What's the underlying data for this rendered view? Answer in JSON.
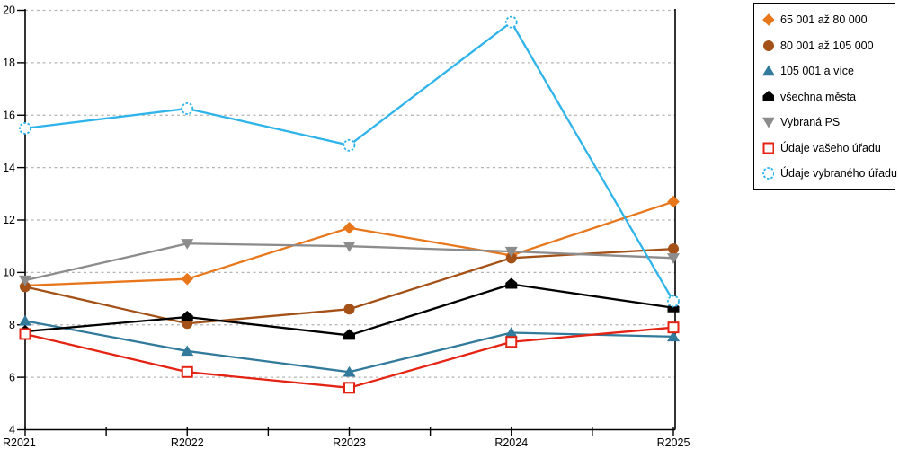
{
  "chart_data": {
    "type": "line",
    "title": "",
    "xlabel": "",
    "ylabel": "",
    "categories": [
      "R2021",
      "R2022",
      "R2023",
      "R2024",
      "R2025"
    ],
    "y_ticks": [
      4,
      6,
      8,
      10,
      12,
      14,
      16,
      18,
      20
    ],
    "ylim": [
      4,
      20
    ],
    "grid": "horizontal-dashed",
    "gridline_color": "#b4b4b4",
    "axis_color": "#000000",
    "legend_position": "top-right-outside",
    "series": [
      {
        "name": "65 001 až 80 000",
        "color": "#e8761b",
        "marker": "diamond",
        "values": [
          9.5,
          9.75,
          11.7,
          10.65,
          12.7
        ]
      },
      {
        "name": "80 001 až 105 000",
        "color": "#a35117",
        "marker": "circle",
        "values": [
          9.45,
          8.05,
          8.6,
          10.55,
          10.9
        ]
      },
      {
        "name": "105 001 a více",
        "color": "#317a9b",
        "marker": "triangle-up",
        "values": [
          8.15,
          7.0,
          6.2,
          7.7,
          7.55
        ]
      },
      {
        "name": "všechna města",
        "color": "#000000",
        "marker": "pentagon",
        "values": [
          7.75,
          8.3,
          7.6,
          9.55,
          8.65
        ]
      },
      {
        "name": "Vybraná PS",
        "color": "#8c8c8c",
        "marker": "triangle-down",
        "values": [
          9.7,
          11.1,
          11.0,
          10.8,
          10.55
        ]
      },
      {
        "name": "Údaje vašeho úřadu",
        "color": "#e42313",
        "marker": "square-open",
        "values": [
          7.65,
          6.2,
          5.6,
          7.35,
          7.9
        ]
      },
      {
        "name": "Údaje vybraného úřadu",
        "color": "#2fb4e9",
        "marker": "circle-open",
        "values": [
          15.5,
          16.25,
          14.85,
          19.55,
          8.9
        ]
      }
    ]
  }
}
